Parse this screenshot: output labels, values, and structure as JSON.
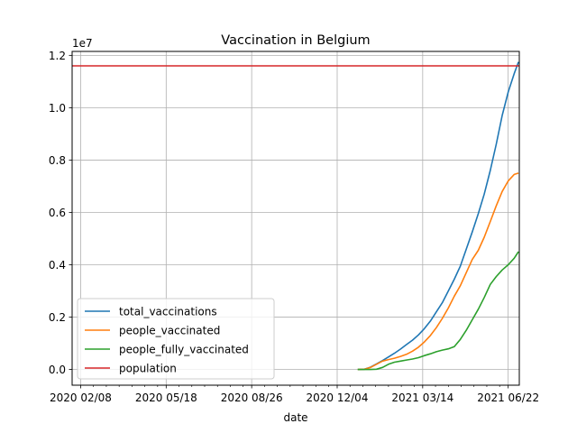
{
  "chart_data": {
    "type": "line",
    "title": "Vaccination in Belgium",
    "xlabel": "date",
    "ylabel": "",
    "y_offset_label": "1e7",
    "y_scale": 10000000,
    "x_range": [
      "2020-01-29",
      "2021-07-05"
    ],
    "ylim": [
      -600000,
      12150000
    ],
    "grid": true,
    "legend_placement": "lower-left",
    "x_ticks": [
      {
        "date": "2020-02-08",
        "label": "2020 02/08"
      },
      {
        "date": "2020-05-18",
        "label": "2020 05/18"
      },
      {
        "date": "2020-08-26",
        "label": "2020 08/26"
      },
      {
        "date": "2020-12-04",
        "label": "2020 12/04"
      },
      {
        "date": "2021-03-14",
        "label": "2021 03/14"
      },
      {
        "date": "2021-06-22",
        "label": "2021 06/22"
      }
    ],
    "x_minor_ticks": [
      "2020-02-23",
      "2020-03-09",
      "2020-03-24",
      "2020-04-08",
      "2020-04-23",
      "2020-05-08",
      "2020-06-02",
      "2020-06-17",
      "2020-07-02",
      "2020-07-17",
      "2020-08-01",
      "2020-08-16",
      "2020-09-10",
      "2020-09-25",
      "2020-10-10",
      "2020-10-25",
      "2020-11-09",
      "2020-11-24",
      "2020-12-19",
      "2021-01-03",
      "2021-01-18",
      "2021-02-02",
      "2021-02-17",
      "2021-03-04",
      "2021-03-29",
      "2021-04-13",
      "2021-04-28",
      "2021-05-13",
      "2021-05-28",
      "2021-06-12"
    ],
    "y_ticks": [
      {
        "value": 0,
        "label": "0.0"
      },
      {
        "value": 2000000,
        "label": "0.2"
      },
      {
        "value": 4000000,
        "label": "0.4"
      },
      {
        "value": 6000000,
        "label": "0.6"
      },
      {
        "value": 8000000,
        "label": "0.8"
      },
      {
        "value": 10000000,
        "label": "1.0"
      },
      {
        "value": 12000000,
        "label": "1.2"
      }
    ],
    "series": [
      {
        "name": "total_vaccinations",
        "color": "#1f77b4",
        "points": [
          [
            "2020-12-28",
            0
          ],
          [
            "2021-01-05",
            10000
          ],
          [
            "2021-01-12",
            90000
          ],
          [
            "2021-01-19",
            210000
          ],
          [
            "2021-01-26",
            340000
          ],
          [
            "2021-02-02",
            480000
          ],
          [
            "2021-02-09",
            620000
          ],
          [
            "2021-02-16",
            780000
          ],
          [
            "2021-02-23",
            950000
          ],
          [
            "2021-03-02",
            1120000
          ],
          [
            "2021-03-09",
            1320000
          ],
          [
            "2021-03-16",
            1560000
          ],
          [
            "2021-03-23",
            1850000
          ],
          [
            "2021-03-30",
            2200000
          ],
          [
            "2021-04-06",
            2550000
          ],
          [
            "2021-04-13",
            3000000
          ],
          [
            "2021-04-20",
            3450000
          ],
          [
            "2021-04-27",
            3950000
          ],
          [
            "2021-05-04",
            4600000
          ],
          [
            "2021-05-11",
            5250000
          ],
          [
            "2021-05-18",
            5950000
          ],
          [
            "2021-05-25",
            6700000
          ],
          [
            "2021-06-01",
            7600000
          ],
          [
            "2021-06-08",
            8600000
          ],
          [
            "2021-06-15",
            9700000
          ],
          [
            "2021-06-22",
            10600000
          ],
          [
            "2021-06-29",
            11300000
          ],
          [
            "2021-07-04",
            11750000
          ]
        ]
      },
      {
        "name": "people_vaccinated",
        "color": "#ff7f0e",
        "points": [
          [
            "2020-12-28",
            0
          ],
          [
            "2021-01-05",
            10000
          ],
          [
            "2021-01-12",
            80000
          ],
          [
            "2021-01-19",
            200000
          ],
          [
            "2021-01-26",
            320000
          ],
          [
            "2021-02-02",
            380000
          ],
          [
            "2021-02-09",
            430000
          ],
          [
            "2021-02-16",
            500000
          ],
          [
            "2021-02-23",
            580000
          ],
          [
            "2021-03-02",
            700000
          ],
          [
            "2021-03-09",
            850000
          ],
          [
            "2021-03-16",
            1050000
          ],
          [
            "2021-03-23",
            1300000
          ],
          [
            "2021-03-30",
            1600000
          ],
          [
            "2021-04-06",
            1950000
          ],
          [
            "2021-04-13",
            2350000
          ],
          [
            "2021-04-20",
            2800000
          ],
          [
            "2021-04-27",
            3200000
          ],
          [
            "2021-05-04",
            3700000
          ],
          [
            "2021-05-11",
            4200000
          ],
          [
            "2021-05-18",
            4550000
          ],
          [
            "2021-05-25",
            5050000
          ],
          [
            "2021-06-01",
            5650000
          ],
          [
            "2021-06-08",
            6250000
          ],
          [
            "2021-06-15",
            6800000
          ],
          [
            "2021-06-22",
            7200000
          ],
          [
            "2021-06-29",
            7450000
          ],
          [
            "2021-07-04",
            7500000
          ]
        ]
      },
      {
        "name": "people_fully_vaccinated",
        "color": "#2ca02c",
        "points": [
          [
            "2020-12-28",
            0
          ],
          [
            "2021-01-12",
            0
          ],
          [
            "2021-01-19",
            10000
          ],
          [
            "2021-01-26",
            80000
          ],
          [
            "2021-02-02",
            200000
          ],
          [
            "2021-02-09",
            280000
          ],
          [
            "2021-02-16",
            320000
          ],
          [
            "2021-02-23",
            360000
          ],
          [
            "2021-03-02",
            400000
          ],
          [
            "2021-03-09",
            450000
          ],
          [
            "2021-03-16",
            530000
          ],
          [
            "2021-03-23",
            600000
          ],
          [
            "2021-03-30",
            680000
          ],
          [
            "2021-04-06",
            740000
          ],
          [
            "2021-04-13",
            790000
          ],
          [
            "2021-04-20",
            870000
          ],
          [
            "2021-04-27",
            1150000
          ],
          [
            "2021-05-04",
            1500000
          ],
          [
            "2021-05-11",
            1900000
          ],
          [
            "2021-05-18",
            2300000
          ],
          [
            "2021-05-25",
            2750000
          ],
          [
            "2021-06-01",
            3250000
          ],
          [
            "2021-06-08",
            3550000
          ],
          [
            "2021-06-15",
            3800000
          ],
          [
            "2021-06-22",
            4000000
          ],
          [
            "2021-06-29",
            4250000
          ],
          [
            "2021-07-04",
            4500000
          ]
        ]
      },
      {
        "name": "population",
        "color": "#d62728",
        "points": [
          [
            "2020-01-29",
            11600000
          ],
          [
            "2021-07-05",
            11600000
          ]
        ]
      }
    ]
  }
}
